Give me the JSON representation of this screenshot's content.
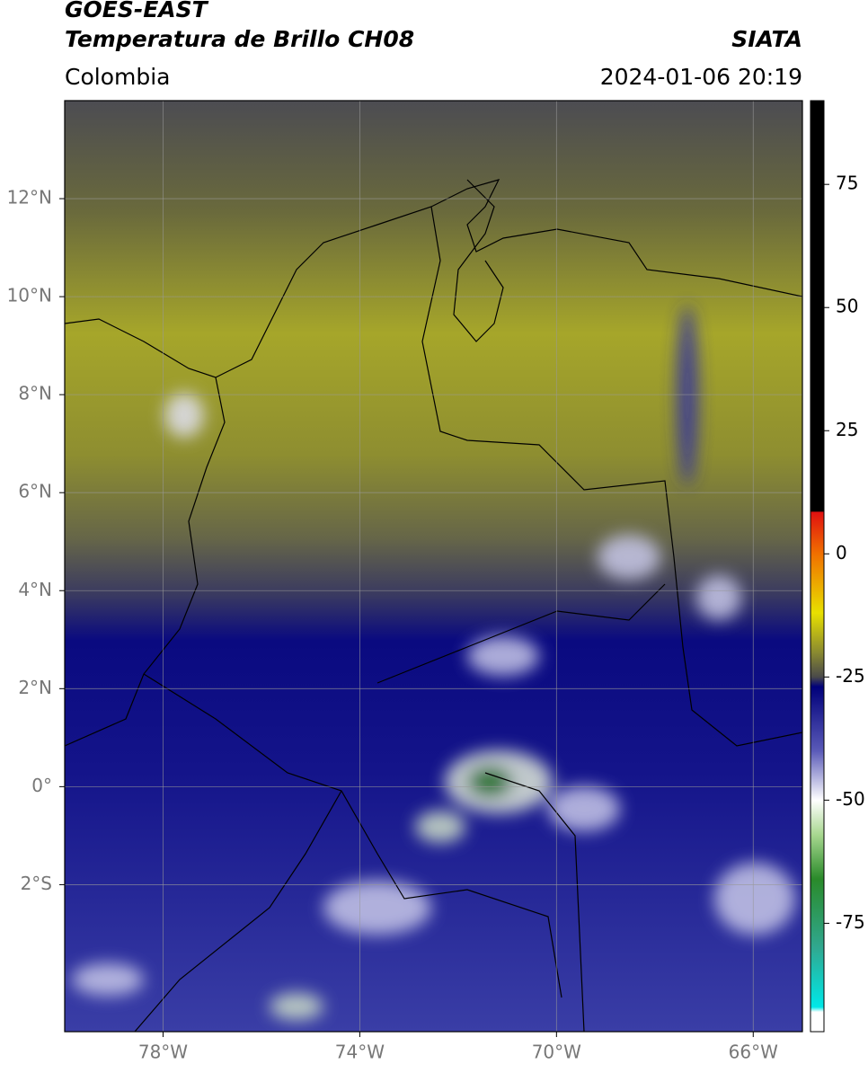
{
  "header": {
    "title": "GOES-EAST",
    "subtitle": "Temperatura de Brillo CH08",
    "source": "SIATA",
    "region": "Colombia",
    "datetime": "2024-01-06 20:19"
  },
  "map": {
    "xlim": [
      -80,
      -65
    ],
    "ylim": [
      -5,
      14
    ],
    "grid": true,
    "xticks": [
      {
        "value": -78,
        "label": "78°W"
      },
      {
        "value": -74,
        "label": "74°W"
      },
      {
        "value": -70,
        "label": "70°W"
      },
      {
        "value": -66,
        "label": "66°W"
      }
    ],
    "yticks": [
      {
        "value": 12,
        "label": "12°N"
      },
      {
        "value": 10,
        "label": "10°N"
      },
      {
        "value": 8,
        "label": "8°N"
      },
      {
        "value": 6,
        "label": "6°N"
      },
      {
        "value": 4,
        "label": "4°N"
      },
      {
        "value": 2,
        "label": "2°N"
      },
      {
        "value": 0,
        "label": "0°"
      },
      {
        "value": -2,
        "label": "2°S"
      }
    ]
  },
  "colorbar": {
    "range": [
      -97,
      92
    ],
    "ticks": [
      75,
      50,
      25,
      0,
      -25,
      -50,
      -75
    ],
    "colormap": [
      {
        "value": 92,
        "color": "#000000"
      },
      {
        "value": 8.6,
        "color": "#000000"
      },
      {
        "value": 8.5,
        "color": "#e01010"
      },
      {
        "value": 0,
        "color": "#f07000"
      },
      {
        "value": -12,
        "color": "#e8e000"
      },
      {
        "value": -20,
        "color": "#8a8a30"
      },
      {
        "value": -25,
        "color": "#4a4a4a"
      },
      {
        "value": -27,
        "color": "#00007a"
      },
      {
        "value": -40,
        "color": "#5a5ab8"
      },
      {
        "value": -50,
        "color": "#ffffff"
      },
      {
        "value": -57,
        "color": "#a8d890"
      },
      {
        "value": -66,
        "color": "#2a8a2a"
      },
      {
        "value": -80,
        "color": "#30a890"
      },
      {
        "value": -92,
        "color": "#00e8e8"
      },
      {
        "value": -93,
        "color": "#ffffff"
      }
    ]
  }
}
